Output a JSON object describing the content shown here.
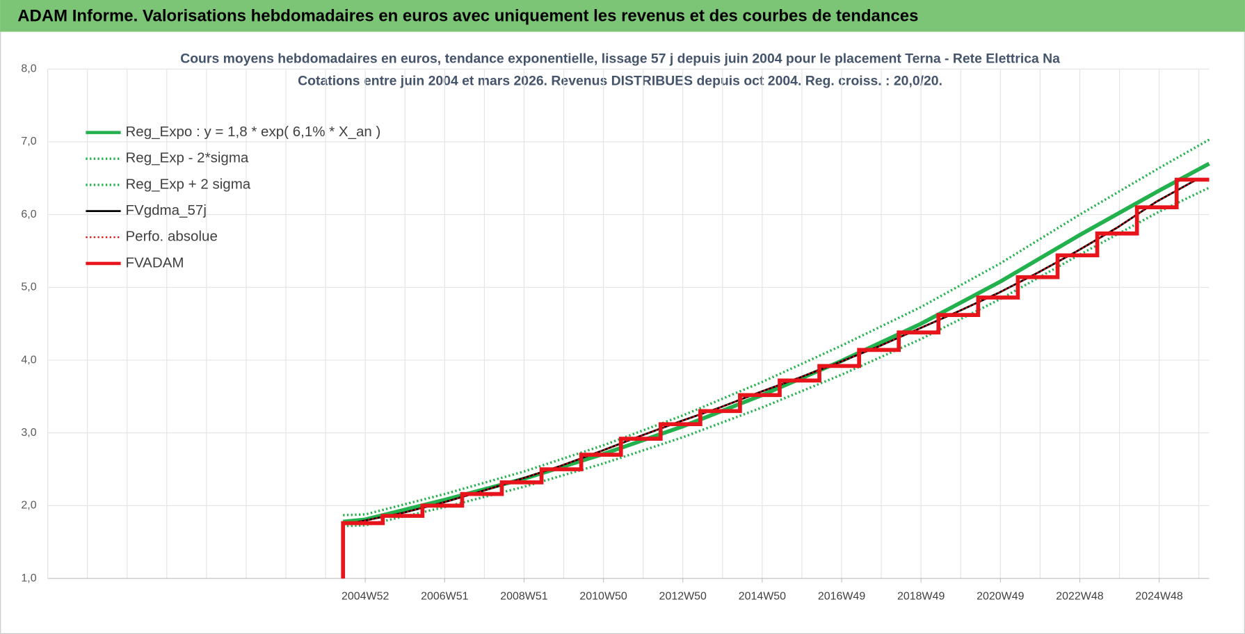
{
  "header": {
    "title": "ADAM Informe. Valorisations hebdomadaires en euros avec uniquement les revenus et des courbes de tendances"
  },
  "chart_data": {
    "type": "line",
    "title": "Cours moyens hebdomadaires en euros, tendance exponentielle, lissage 57 j depuis juin 2004 pour le placement Terna - Rete Elettrica Na",
    "subtitle": "Cotations entre juin 2004 et mars 2026. Revenus DISTRIBUES depuis oct 2004. Reg. croiss. : 20,0/20.",
    "xlim": [
      1997.0,
      2026.26
    ],
    "xticks": [
      {
        "value": 2005.0,
        "label": "2004W52"
      },
      {
        "value": 2007.0,
        "label": "2006W51"
      },
      {
        "value": 2009.0,
        "label": "2008W51"
      },
      {
        "value": 2011.0,
        "label": "2010W50"
      },
      {
        "value": 2013.0,
        "label": "2012W50"
      },
      {
        "value": 2015.0,
        "label": "2014W50"
      },
      {
        "value": 2017.0,
        "label": "2016W49"
      },
      {
        "value": 2019.0,
        "label": "2018W49"
      },
      {
        "value": 2021.0,
        "label": "2020W49"
      },
      {
        "value": 2023.0,
        "label": "2022W48"
      },
      {
        "value": 2025.0,
        "label": "2024W48"
      }
    ],
    "xgrid": [
      1997,
      1998,
      1999,
      2000,
      2001,
      2002,
      2003,
      2004,
      2005,
      2006,
      2007,
      2008,
      2009,
      2010,
      2011,
      2012,
      2013,
      2014,
      2015,
      2016,
      2017,
      2018,
      2019,
      2020,
      2021,
      2022,
      2023,
      2024,
      2025,
      2026
    ],
    "ylim": [
      1,
      8
    ],
    "yticks": [
      {
        "value": 1,
        "label": "1,0"
      },
      {
        "value": 2,
        "label": "2,0"
      },
      {
        "value": 3,
        "label": "3,0"
      },
      {
        "value": 4,
        "label": "4,0"
      },
      {
        "value": 5,
        "label": "5,0"
      },
      {
        "value": 6,
        "label": "6,0"
      },
      {
        "value": 7,
        "label": "7,0"
      },
      {
        "value": 8,
        "label": "8,0"
      }
    ],
    "grid": true,
    "legend": "upper left",
    "series": [
      {
        "name": "Reg_Expo : y = 1,8 * exp( 6,1% *  X_an )",
        "color": "#22b14c",
        "style": "solid",
        "width": 5,
        "x": [
          2004.44,
          2005.0,
          2007.0,
          2009.0,
          2011.0,
          2013.0,
          2015.0,
          2017.0,
          2019.0,
          2021.0,
          2023.0,
          2025.0,
          2026.26
        ],
        "values": [
          1.78,
          1.81,
          2.08,
          2.37,
          2.71,
          3.09,
          3.52,
          3.99,
          4.5,
          5.08,
          5.72,
          6.33,
          6.7
        ]
      },
      {
        "name": "Reg_Exp - 2*sigma",
        "color": "#22b14c",
        "style": "dotted",
        "width": 3,
        "x": [
          2004.44,
          2005.0,
          2007.0,
          2009.0,
          2011.0,
          2013.0,
          2015.0,
          2017.0,
          2019.0,
          2021.0,
          2023.0,
          2025.0,
          2026.26
        ],
        "values": [
          1.72,
          1.73,
          1.98,
          2.26,
          2.58,
          2.94,
          3.35,
          3.8,
          4.29,
          4.84,
          5.45,
          6.04,
          6.37
        ]
      },
      {
        "name": "Reg_Exp + 2 sigma",
        "color": "#22b14c",
        "style": "dotted",
        "width": 3,
        "x": [
          2004.44,
          2005.0,
          2007.0,
          2009.0,
          2011.0,
          2013.0,
          2015.0,
          2017.0,
          2019.0,
          2021.0,
          2023.0,
          2025.0,
          2026.26
        ],
        "values": [
          1.87,
          1.88,
          2.16,
          2.47,
          2.83,
          3.24,
          3.7,
          4.2,
          4.73,
          5.33,
          6.0,
          6.64,
          7.03
        ]
      },
      {
        "name": "FVgdma_57j",
        "color": "#000000",
        "style": "solid",
        "width": 2.5,
        "x": [
          2004.44,
          2004.44,
          2004.94,
          2005.94,
          2006.94,
          2007.94,
          2008.94,
          2009.94,
          2010.94,
          2011.94,
          2012.94,
          2013.94,
          2014.94,
          2015.94,
          2016.94,
          2017.94,
          2018.94,
          2019.94,
          2020.94,
          2021.94,
          2022.94,
          2023.94,
          2024.94,
          2025.94,
          2026.26
        ],
        "values": [
          1.0,
          1.74,
          1.79,
          1.9,
          2.04,
          2.2,
          2.37,
          2.55,
          2.75,
          2.96,
          3.16,
          3.35,
          3.56,
          3.76,
          3.97,
          4.19,
          4.43,
          4.67,
          4.92,
          5.2,
          5.5,
          5.82,
          6.18,
          6.48,
          6.49
        ]
      },
      {
        "name": "Perfo. absolue",
        "color": "#e00000",
        "style": "dotted",
        "width": 2,
        "x": [
          2004.44,
          2004.44,
          2004.94,
          2005.94,
          2006.94,
          2007.94,
          2008.94,
          2009.94,
          2010.94,
          2011.94,
          2012.94,
          2013.94,
          2014.94,
          2015.94,
          2016.94,
          2017.94,
          2018.94,
          2019.94,
          2020.94,
          2021.94,
          2022.94,
          2023.94,
          2024.94,
          2025.94,
          2026.26
        ],
        "values": [
          1.0,
          1.74,
          1.79,
          1.9,
          2.04,
          2.2,
          2.37,
          2.55,
          2.75,
          2.96,
          3.16,
          3.35,
          3.56,
          3.76,
          3.97,
          4.19,
          4.43,
          4.67,
          4.92,
          5.2,
          5.5,
          5.82,
          6.18,
          6.48,
          6.49
        ]
      },
      {
        "name": "FVADAM",
        "color": "#e8141c",
        "style": "solid",
        "width": 5,
        "x": [
          2004.44,
          2004.44,
          2005.44,
          2005.44,
          2006.44,
          2006.44,
          2007.44,
          2007.44,
          2008.44,
          2008.44,
          2009.44,
          2009.44,
          2010.44,
          2010.44,
          2011.44,
          2011.44,
          2012.44,
          2012.44,
          2013.44,
          2013.44,
          2014.44,
          2014.44,
          2015.44,
          2015.44,
          2016.44,
          2016.44,
          2017.44,
          2017.44,
          2018.44,
          2018.44,
          2019.44,
          2019.44,
          2020.44,
          2020.44,
          2021.44,
          2021.44,
          2022.44,
          2022.44,
          2023.44,
          2023.44,
          2024.44,
          2024.44,
          2025.44,
          2025.44,
          2026.26
        ],
        "values": [
          1.0,
          1.76,
          1.76,
          1.86,
          1.86,
          2.0,
          2.0,
          2.16,
          2.16,
          2.32,
          2.32,
          2.5,
          2.5,
          2.7,
          2.7,
          2.92,
          2.92,
          3.12,
          3.12,
          3.3,
          3.3,
          3.52,
          3.52,
          3.72,
          3.72,
          3.92,
          3.92,
          4.14,
          4.14,
          4.38,
          4.38,
          4.62,
          4.62,
          4.86,
          4.86,
          5.14,
          5.14,
          5.44,
          5.44,
          5.74,
          5.74,
          6.1,
          6.1,
          6.48,
          6.48
        ]
      }
    ]
  }
}
